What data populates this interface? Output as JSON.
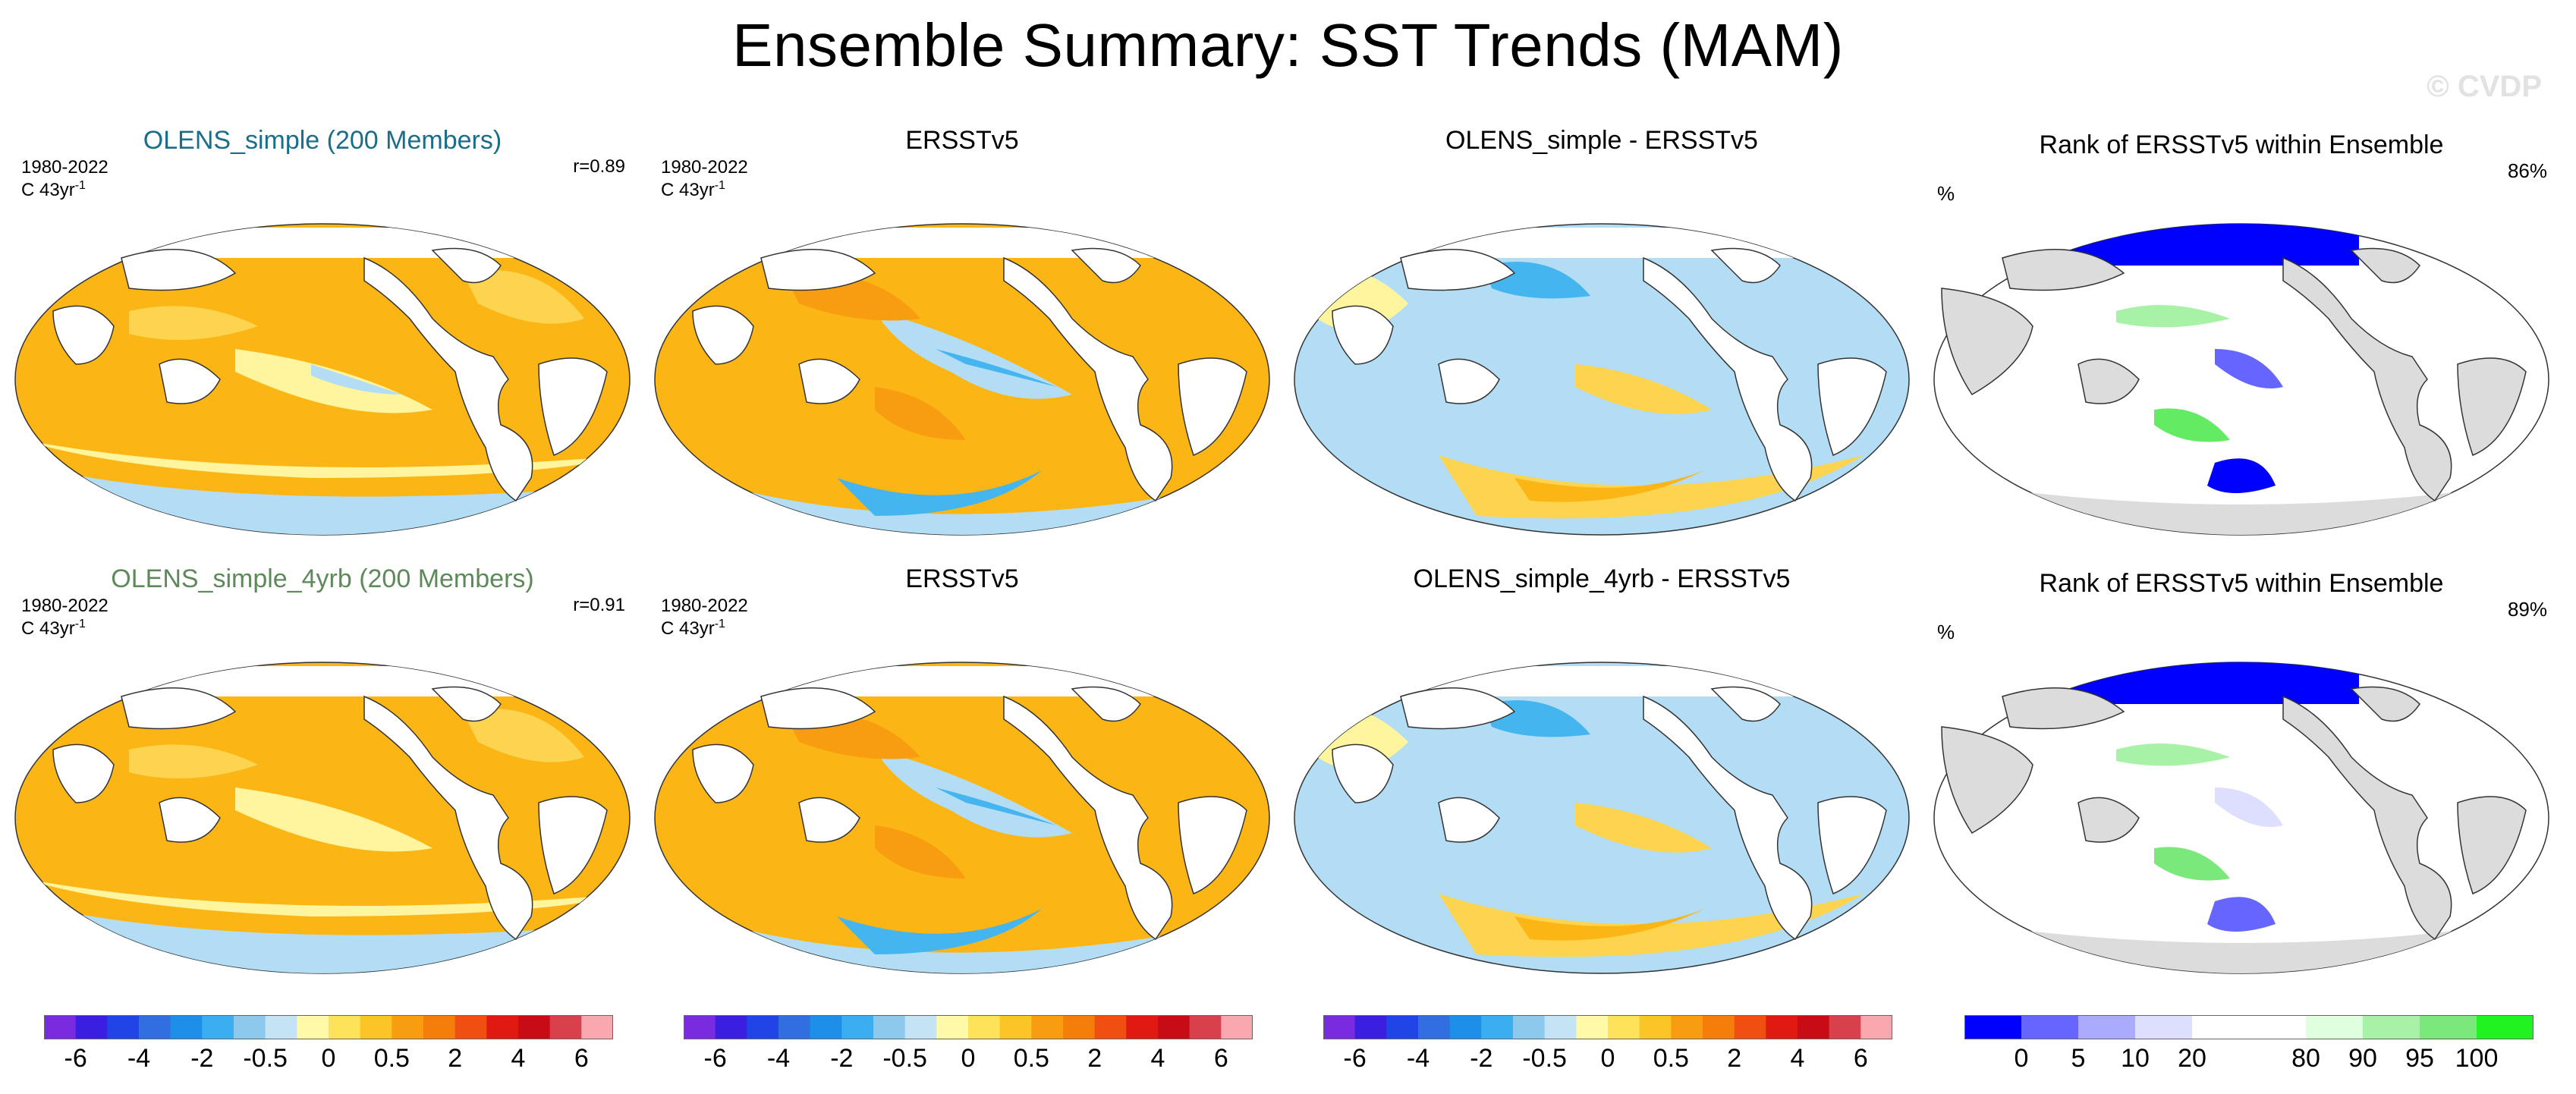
{
  "title": "Ensemble Summary: SST Trends (MAM)",
  "watermark": "© CVDP",
  "colors": {
    "ocean_warm": "#fbb615",
    "ocean_mild": "#fdd44f",
    "ocean_weak": "#fff59e",
    "ocean_cool": "#b3dcf5",
    "ocean_cold": "#45b5ef",
    "land_rank": "#dcdcdc",
    "rank_low": "#0000ff",
    "rank_high": "#21e321"
  },
  "rows": [
    {
      "model": {
        "title": "OLENS_simple (200 Members)",
        "title_color": "#1b6e8a",
        "period": "1980-2022",
        "unit": "C 43yr",
        "unit_exp": "-1",
        "correlation": "r=0.89"
      },
      "obs": {
        "title": "ERSSTv5",
        "period": "1980-2022",
        "unit": "C 43yr",
        "unit_exp": "-1"
      },
      "diff": {
        "title": "OLENS_simple - ERSSTv5"
      },
      "rank": {
        "title": "Rank of ERSSTv5 within Ensemble",
        "unit": "%",
        "pct": "86%"
      }
    },
    {
      "model": {
        "title": "OLENS_simple_4yrb (200 Members)",
        "title_color": "#5e8a5a",
        "period": "1980-2022",
        "unit": "C 43yr",
        "unit_exp": "-1",
        "correlation": "r=0.91"
      },
      "obs": {
        "title": "ERSSTv5",
        "period": "1980-2022",
        "unit": "C 43yr",
        "unit_exp": "-1"
      },
      "diff": {
        "title": "OLENS_simple_4yrb - ERSSTv5"
      },
      "rank": {
        "title": "Rank of ERSSTv5 within Ensemble",
        "unit": "%",
        "pct": "89%"
      }
    }
  ],
  "chart_data": {
    "type": "heatmap",
    "projection": "Robinson-like global ocean maps (Pacific-centered)",
    "title": "Ensemble Summary: SST Trends (MAM)",
    "panels": [
      "OLENS_simple (200 Members)",
      "ERSSTv5",
      "OLENS_simple - ERSSTv5",
      "Rank of ERSSTv5 within Ensemble",
      "OLENS_simple_4yrb (200 Members)",
      "ERSSTv5",
      "OLENS_simple_4yrb - ERSSTv5",
      "Rank of ERSSTv5 within Ensemble"
    ],
    "trend_colorbar": {
      "colors": [
        "#7a2be0",
        "#3a1fe0",
        "#2045e6",
        "#2f6fe0",
        "#1e8fe8",
        "#3aaef0",
        "#8cc9ec",
        "#c4e4f5",
        "#fff9a8",
        "#fde25a",
        "#fbc528",
        "#f89d10",
        "#f57d0a",
        "#ef4f10",
        "#e01a10",
        "#c80c16",
        "#d8404c",
        "#f8a8ae"
      ],
      "tick_labels": [
        "-6",
        "-4",
        "-2",
        "-0.5",
        "0",
        "0.5",
        "2",
        "4",
        "6"
      ],
      "tick_boundaries": [
        1,
        3,
        5,
        7,
        9,
        11,
        13,
        15,
        17
      ]
    },
    "rank_colorbar": {
      "colors": [
        "#0000ff",
        "#6666ff",
        "#aaaaff",
        "#dedeff",
        "#ffffff",
        "#ffffff",
        "#dfffdf",
        "#a8f2a8",
        "#7ae87a",
        "#21f321"
      ],
      "tick_labels": [
        "0",
        "5",
        "10",
        "20",
        "80",
        "90",
        "95",
        "100"
      ],
      "tick_boundaries": [
        1,
        2,
        3,
        4,
        6,
        7,
        8,
        9
      ]
    }
  }
}
